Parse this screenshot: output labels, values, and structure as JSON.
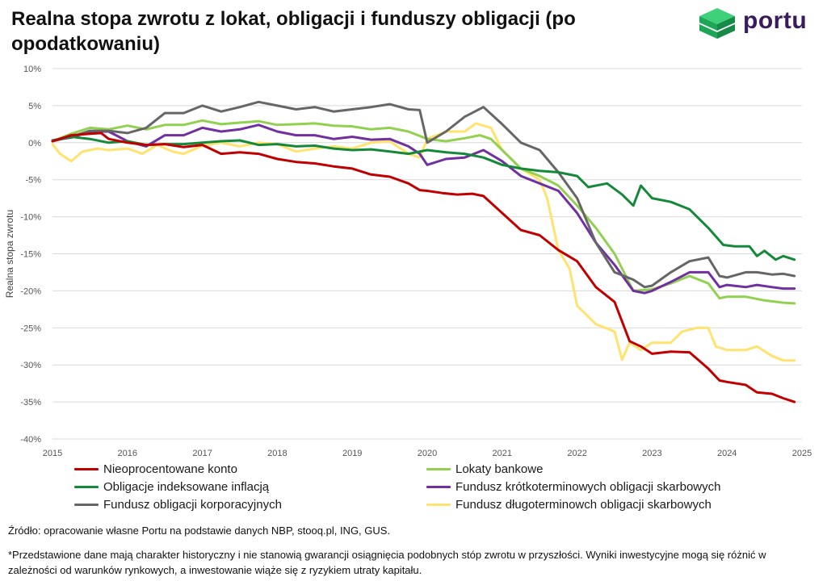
{
  "header": {
    "title": "Realna stopa zwrotu z lokat, obligacji i funduszy obligacji (po opodatkowaniu)",
    "logo_text": "portu"
  },
  "chart_data": {
    "type": "line",
    "title": "Realna stopa zwrotu z lokat, obligacji i funduszy obligacji (po opodatkowaniu)",
    "ylabel": "Realna stopa zwrotu",
    "xlabel": "",
    "xlim": [
      2015,
      2025
    ],
    "ylim": [
      -40,
      10
    ],
    "x_ticks": [
      "2015",
      "2016",
      "2017",
      "2018",
      "2019",
      "2020",
      "2021",
      "2022",
      "2023",
      "2024",
      "2025"
    ],
    "y_ticks": [
      "10%",
      "5%",
      "0%",
      "-5%",
      "-10%",
      "-15%",
      "-20%",
      "-25%",
      "-30%",
      "-35%",
      "-40%"
    ],
    "grid": "horizontal",
    "legend_position": "bottom",
    "series": [
      {
        "name": "Nieoprocentowane konto",
        "color": "#c00000",
        "points": [
          [
            2015.0,
            0.2
          ],
          [
            2015.25,
            1.0
          ],
          [
            2015.5,
            1.2
          ],
          [
            2015.65,
            1.3
          ],
          [
            2015.75,
            0.5
          ],
          [
            2016.0,
            0.0
          ],
          [
            2016.25,
            -0.3
          ],
          [
            2016.5,
            -0.2
          ],
          [
            2016.75,
            -0.6
          ],
          [
            2017.0,
            -0.3
          ],
          [
            2017.25,
            -1.5
          ],
          [
            2017.5,
            -1.3
          ],
          [
            2017.75,
            -1.5
          ],
          [
            2018.0,
            -2.2
          ],
          [
            2018.25,
            -2.6
          ],
          [
            2018.5,
            -2.8
          ],
          [
            2018.75,
            -3.2
          ],
          [
            2019.0,
            -3.5
          ],
          [
            2019.25,
            -4.3
          ],
          [
            2019.5,
            -4.6
          ],
          [
            2019.75,
            -5.5
          ],
          [
            2019.9,
            -6.4
          ],
          [
            2020.0,
            -6.5
          ],
          [
            2020.2,
            -6.8
          ],
          [
            2020.4,
            -7.0
          ],
          [
            2020.6,
            -6.9
          ],
          [
            2020.75,
            -7.2
          ],
          [
            2021.0,
            -9.5
          ],
          [
            2021.25,
            -11.8
          ],
          [
            2021.5,
            -12.5
          ],
          [
            2021.75,
            -14.5
          ],
          [
            2022.0,
            -16.0
          ],
          [
            2022.25,
            -19.5
          ],
          [
            2022.5,
            -21.5
          ],
          [
            2022.7,
            -26.8
          ],
          [
            2022.85,
            -27.5
          ],
          [
            2023.0,
            -28.5
          ],
          [
            2023.25,
            -28.2
          ],
          [
            2023.5,
            -28.3
          ],
          [
            2023.75,
            -30.5
          ],
          [
            2023.9,
            -32.1
          ],
          [
            2024.0,
            -32.3
          ],
          [
            2024.25,
            -32.7
          ],
          [
            2024.4,
            -33.7
          ],
          [
            2024.6,
            -33.9
          ],
          [
            2024.75,
            -34.5
          ],
          [
            2024.9,
            -35.0
          ]
        ]
      },
      {
        "name": "Lokaty bankowe",
        "color": "#92d050",
        "points": [
          [
            2015.0,
            0.2
          ],
          [
            2015.25,
            1.2
          ],
          [
            2015.5,
            2.0
          ],
          [
            2015.75,
            1.8
          ],
          [
            2016.0,
            2.3
          ],
          [
            2016.25,
            1.8
          ],
          [
            2016.5,
            2.4
          ],
          [
            2016.75,
            2.4
          ],
          [
            2017.0,
            3.0
          ],
          [
            2017.25,
            2.5
          ],
          [
            2017.5,
            2.7
          ],
          [
            2017.75,
            2.9
          ],
          [
            2018.0,
            2.4
          ],
          [
            2018.25,
            2.5
          ],
          [
            2018.5,
            2.6
          ],
          [
            2018.75,
            2.3
          ],
          [
            2019.0,
            2.2
          ],
          [
            2019.25,
            1.8
          ],
          [
            2019.5,
            2.0
          ],
          [
            2019.75,
            1.5
          ],
          [
            2020.0,
            0.5
          ],
          [
            2020.25,
            0.2
          ],
          [
            2020.5,
            0.6
          ],
          [
            2020.7,
            1.0
          ],
          [
            2020.85,
            0.5
          ],
          [
            2021.0,
            -1.0
          ],
          [
            2021.25,
            -3.5
          ],
          [
            2021.5,
            -4.5
          ],
          [
            2021.75,
            -5.8
          ],
          [
            2022.0,
            -8.5
          ],
          [
            2022.25,
            -11.5
          ],
          [
            2022.5,
            -15.0
          ],
          [
            2022.75,
            -20.0
          ],
          [
            2023.0,
            -19.8
          ],
          [
            2023.25,
            -19.0
          ],
          [
            2023.5,
            -18.0
          ],
          [
            2023.75,
            -19.0
          ],
          [
            2023.9,
            -21.0
          ],
          [
            2024.0,
            -20.8
          ],
          [
            2024.25,
            -20.8
          ],
          [
            2024.5,
            -21.3
          ],
          [
            2024.75,
            -21.6
          ],
          [
            2024.9,
            -21.7
          ]
        ]
      },
      {
        "name": "Obligacje indeksowane inflacją",
        "color": "#15893a",
        "points": [
          [
            2015.0,
            0.3
          ],
          [
            2015.25,
            0.8
          ],
          [
            2015.5,
            0.5
          ],
          [
            2015.75,
            0.0
          ],
          [
            2016.0,
            0.2
          ],
          [
            2016.25,
            -0.3
          ],
          [
            2016.5,
            -0.2
          ],
          [
            2016.75,
            -0.2
          ],
          [
            2017.0,
            0.0
          ],
          [
            2017.25,
            0.2
          ],
          [
            2017.5,
            0.3
          ],
          [
            2017.75,
            -0.3
          ],
          [
            2018.0,
            -0.2
          ],
          [
            2018.25,
            -0.5
          ],
          [
            2018.5,
            -0.4
          ],
          [
            2018.75,
            -0.8
          ],
          [
            2019.0,
            -1.0
          ],
          [
            2019.25,
            -0.9
          ],
          [
            2019.5,
            -1.2
          ],
          [
            2019.75,
            -1.5
          ],
          [
            2020.0,
            -1.0
          ],
          [
            2020.25,
            -1.3
          ],
          [
            2020.5,
            -1.5
          ],
          [
            2020.75,
            -2.0
          ],
          [
            2021.0,
            -3.0
          ],
          [
            2021.25,
            -3.5
          ],
          [
            2021.5,
            -3.8
          ],
          [
            2021.75,
            -4.0
          ],
          [
            2022.0,
            -4.5
          ],
          [
            2022.15,
            -6.0
          ],
          [
            2022.4,
            -5.5
          ],
          [
            2022.6,
            -7.0
          ],
          [
            2022.75,
            -8.5
          ],
          [
            2022.85,
            -5.8
          ],
          [
            2023.0,
            -7.5
          ],
          [
            2023.25,
            -8.0
          ],
          [
            2023.5,
            -9.0
          ],
          [
            2023.75,
            -11.5
          ],
          [
            2023.95,
            -13.8
          ],
          [
            2024.1,
            -14.0
          ],
          [
            2024.3,
            -14.0
          ],
          [
            2024.4,
            -15.3
          ],
          [
            2024.5,
            -14.6
          ],
          [
            2024.65,
            -15.8
          ],
          [
            2024.75,
            -15.3
          ],
          [
            2024.9,
            -15.8
          ]
        ]
      },
      {
        "name": "Fundusz krótkoterminowych obligacji skarbowych",
        "color": "#7030a0",
        "points": [
          [
            2015.0,
            0.3
          ],
          [
            2015.25,
            0.7
          ],
          [
            2015.5,
            1.5
          ],
          [
            2015.75,
            1.5
          ],
          [
            2016.0,
            0.2
          ],
          [
            2016.25,
            -0.5
          ],
          [
            2016.5,
            1.0
          ],
          [
            2016.75,
            1.0
          ],
          [
            2017.0,
            2.0
          ],
          [
            2017.25,
            1.5
          ],
          [
            2017.5,
            1.8
          ],
          [
            2017.75,
            2.4
          ],
          [
            2018.0,
            1.5
          ],
          [
            2018.25,
            1.0
          ],
          [
            2018.5,
            1.0
          ],
          [
            2018.75,
            0.5
          ],
          [
            2019.0,
            0.8
          ],
          [
            2019.25,
            0.4
          ],
          [
            2019.5,
            0.5
          ],
          [
            2019.75,
            -0.5
          ],
          [
            2019.9,
            -1.5
          ],
          [
            2020.0,
            -3.0
          ],
          [
            2020.25,
            -2.2
          ],
          [
            2020.5,
            -2.0
          ],
          [
            2020.75,
            -1.0
          ],
          [
            2021.0,
            -2.5
          ],
          [
            2021.25,
            -4.5
          ],
          [
            2021.5,
            -5.5
          ],
          [
            2021.75,
            -6.5
          ],
          [
            2022.0,
            -9.5
          ],
          [
            2022.25,
            -13.5
          ],
          [
            2022.5,
            -16.5
          ],
          [
            2022.75,
            -20.0
          ],
          [
            2022.9,
            -20.3
          ],
          [
            2023.0,
            -20.0
          ],
          [
            2023.25,
            -18.8
          ],
          [
            2023.5,
            -17.5
          ],
          [
            2023.75,
            -17.5
          ],
          [
            2023.9,
            -19.5
          ],
          [
            2024.0,
            -19.2
          ],
          [
            2024.25,
            -19.5
          ],
          [
            2024.4,
            -19.2
          ],
          [
            2024.6,
            -19.5
          ],
          [
            2024.75,
            -19.7
          ],
          [
            2024.9,
            -19.7
          ]
        ]
      },
      {
        "name": "Fundusz obligacji korporacyjnych",
        "color": "#666666",
        "points": [
          [
            2015.0,
            0.2
          ],
          [
            2015.25,
            0.8
          ],
          [
            2015.5,
            1.6
          ],
          [
            2015.75,
            1.6
          ],
          [
            2016.0,
            1.3
          ],
          [
            2016.25,
            2.0
          ],
          [
            2016.5,
            4.0
          ],
          [
            2016.75,
            4.0
          ],
          [
            2017.0,
            5.0
          ],
          [
            2017.25,
            4.2
          ],
          [
            2017.5,
            4.8
          ],
          [
            2017.75,
            5.5
          ],
          [
            2018.0,
            5.0
          ],
          [
            2018.25,
            4.5
          ],
          [
            2018.5,
            4.8
          ],
          [
            2018.75,
            4.2
          ],
          [
            2019.0,
            4.5
          ],
          [
            2019.25,
            4.8
          ],
          [
            2019.5,
            5.2
          ],
          [
            2019.75,
            4.5
          ],
          [
            2019.9,
            4.4
          ],
          [
            2020.0,
            0.0
          ],
          [
            2020.25,
            1.5
          ],
          [
            2020.5,
            3.5
          ],
          [
            2020.75,
            4.8
          ],
          [
            2021.0,
            2.5
          ],
          [
            2021.25,
            0.0
          ],
          [
            2021.5,
            -1.0
          ],
          [
            2021.75,
            -4.0
          ],
          [
            2022.0,
            -7.5
          ],
          [
            2022.25,
            -13.5
          ],
          [
            2022.5,
            -17.5
          ],
          [
            2022.75,
            -18.5
          ],
          [
            2022.9,
            -19.5
          ],
          [
            2023.0,
            -19.3
          ],
          [
            2023.25,
            -17.5
          ],
          [
            2023.5,
            -16.0
          ],
          [
            2023.75,
            -15.5
          ],
          [
            2023.9,
            -18.0
          ],
          [
            2024.0,
            -18.2
          ],
          [
            2024.25,
            -17.5
          ],
          [
            2024.4,
            -17.5
          ],
          [
            2024.6,
            -17.8
          ],
          [
            2024.75,
            -17.7
          ],
          [
            2024.9,
            -18.0
          ]
        ]
      },
      {
        "name": "Fundusz długoterminowch obligacji skarbowych",
        "color": "#ffe36e",
        "points": [
          [
            2015.0,
            -0.2
          ],
          [
            2015.1,
            -1.5
          ],
          [
            2015.25,
            -2.5
          ],
          [
            2015.4,
            -1.2
          ],
          [
            2015.6,
            -0.8
          ],
          [
            2015.75,
            -1.0
          ],
          [
            2016.0,
            -0.8
          ],
          [
            2016.2,
            -1.5
          ],
          [
            2016.4,
            -0.3
          ],
          [
            2016.6,
            -1.2
          ],
          [
            2016.75,
            -1.5
          ],
          [
            2017.0,
            -0.4
          ],
          [
            2017.25,
            0.0
          ],
          [
            2017.5,
            -0.5
          ],
          [
            2017.75,
            0.0
          ],
          [
            2018.0,
            -0.2
          ],
          [
            2018.25,
            -1.2
          ],
          [
            2018.5,
            -0.8
          ],
          [
            2018.75,
            -0.5
          ],
          [
            2019.0,
            -0.8
          ],
          [
            2019.25,
            0.0
          ],
          [
            2019.5,
            0.2
          ],
          [
            2019.75,
            -1.5
          ],
          [
            2019.9,
            -2.0
          ],
          [
            2020.0,
            0.5
          ],
          [
            2020.25,
            1.5
          ],
          [
            2020.5,
            1.5
          ],
          [
            2020.65,
            2.6
          ],
          [
            2020.85,
            2.0
          ],
          [
            2021.0,
            -1.0
          ],
          [
            2021.25,
            -3.5
          ],
          [
            2021.5,
            -5.0
          ],
          [
            2021.6,
            -7.5
          ],
          [
            2021.75,
            -14.5
          ],
          [
            2021.9,
            -17.0
          ],
          [
            2022.0,
            -22.0
          ],
          [
            2022.25,
            -24.5
          ],
          [
            2022.5,
            -25.5
          ],
          [
            2022.6,
            -29.3
          ],
          [
            2022.7,
            -27.0
          ],
          [
            2022.85,
            -28.0
          ],
          [
            2023.0,
            -27.0
          ],
          [
            2023.25,
            -27.0
          ],
          [
            2023.4,
            -25.5
          ],
          [
            2023.6,
            -25.0
          ],
          [
            2023.75,
            -25.0
          ],
          [
            2023.85,
            -27.5
          ],
          [
            2024.0,
            -28.0
          ],
          [
            2024.25,
            -28.0
          ],
          [
            2024.4,
            -27.5
          ],
          [
            2024.6,
            -28.8
          ],
          [
            2024.75,
            -29.4
          ],
          [
            2024.9,
            -29.4
          ]
        ]
      }
    ]
  },
  "legend": [
    {
      "label": "Nieoprocentowane konto",
      "color": "#c00000"
    },
    {
      "label": "Lokaty bankowe",
      "color": "#92d050"
    },
    {
      "label": "Obligacje indeksowane inflacją",
      "color": "#15893a"
    },
    {
      "label": "Fundusz krótkoterminowych obligacji skarbowych",
      "color": "#7030a0"
    },
    {
      "label": "Fundusz obligacji korporacyjnych",
      "color": "#666666"
    },
    {
      "label": "Fundusz długoterminowch obligacji skarbowych",
      "color": "#ffe36e"
    }
  ],
  "footer": {
    "source": "Źródło: opracowanie własne Portu na podstawie danych NBP, stooq.pl, ING, GUS.",
    "disclaimer": "*Przedstawione dane mają charakter historyczny i nie stanowią gwarancji osiągnięcia podobnych stóp zwrotu w przyszłości. Wyniki inwestycyjne mogą się różnić w zależności od warunków rynkowych, a inwestowanie wiąże się z ryzykiem utraty kapitału."
  }
}
